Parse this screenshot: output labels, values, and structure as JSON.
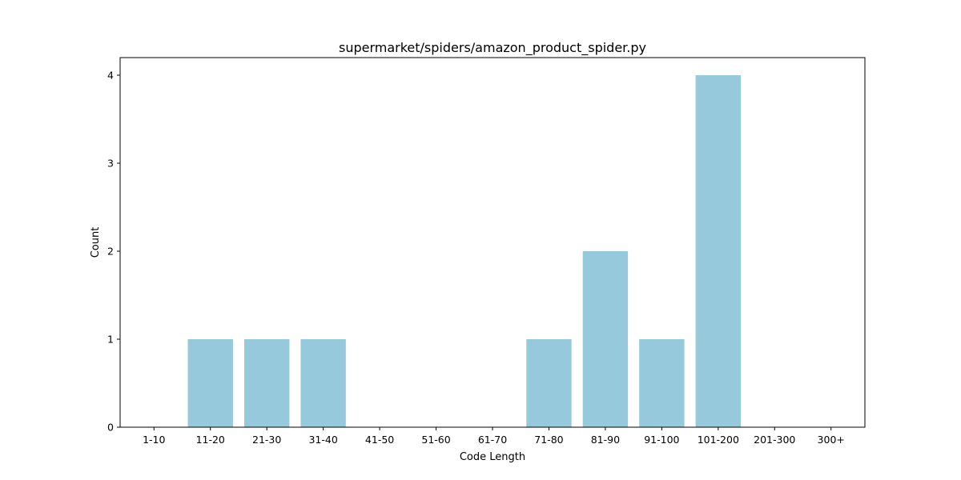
{
  "chart_data": {
    "type": "bar",
    "title": "supermarket/spiders/amazon_product_spider.py",
    "xlabel": "Code Length",
    "ylabel": "Count",
    "categories": [
      "1-10",
      "11-20",
      "21-30",
      "31-40",
      "41-50",
      "51-60",
      "61-70",
      "71-80",
      "81-90",
      "91-100",
      "101-200",
      "201-300",
      "300+"
    ],
    "values": [
      0,
      1,
      1,
      1,
      0,
      0,
      0,
      1,
      2,
      1,
      4,
      0,
      0
    ],
    "ylim": [
      0,
      4.2
    ],
    "yticks": [
      0,
      1,
      2,
      3,
      4
    ],
    "grid": false,
    "bar_color": "#96c9dc"
  }
}
